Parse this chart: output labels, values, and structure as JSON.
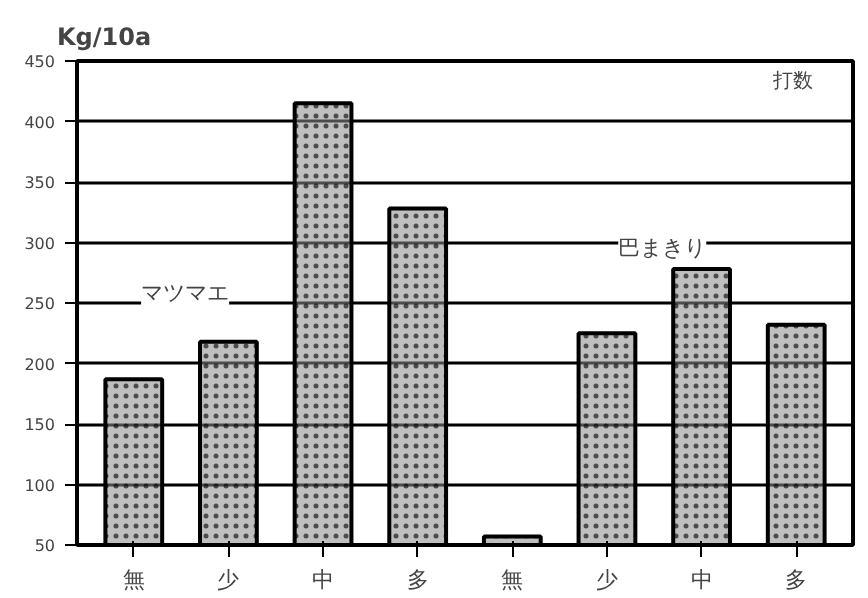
{
  "chart_data": {
    "type": "bar",
    "ylabel": "Kg/10a",
    "annotations": [
      "打数"
    ],
    "categories": [
      "無",
      "少",
      "中",
      "多",
      "無",
      "少",
      "中",
      "多"
    ],
    "series": [
      {
        "name": "マツマエ",
        "color": "#8a8a8a",
        "values": [
          187,
          218,
          415,
          328,
          null,
          null,
          null,
          null
        ]
      },
      {
        "name": "巴まきり",
        "color": "#8a8a8a",
        "values": [
          null,
          null,
          null,
          null,
          57,
          225,
          278,
          232
        ]
      }
    ],
    "ylim": [
      50,
      450
    ],
    "yticks": [
      50,
      100,
      150,
      200,
      250,
      300,
      350,
      400,
      450
    ],
    "grid": "y"
  }
}
